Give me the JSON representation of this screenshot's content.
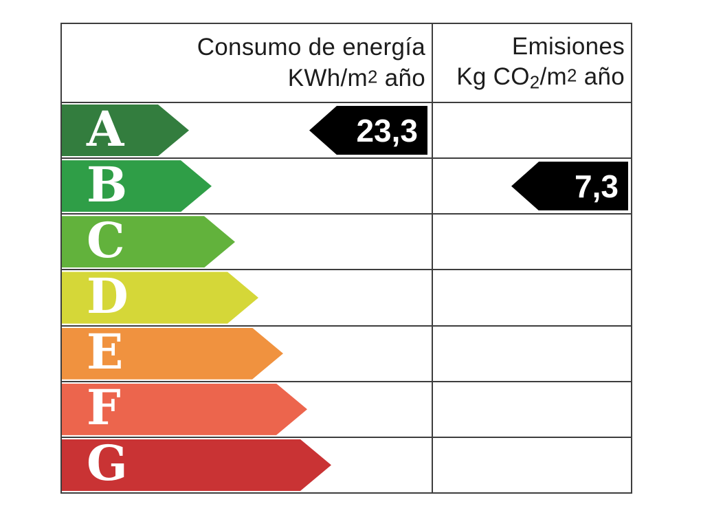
{
  "header": {
    "consumption": {
      "title": "Consumo de energía",
      "unit_pre": "KWh/m",
      "unit_sup": "2",
      "unit_post": " año"
    },
    "emissions": {
      "title": "Emisiones",
      "unit_pre": "Kg CO",
      "unit_sub": "2",
      "unit_mid": "/m",
      "unit_sup": "2",
      "unit_post": " año"
    }
  },
  "ratings": [
    {
      "letter": "A",
      "color": "#337d3e",
      "arrow_width": 185
    },
    {
      "letter": "B",
      "color": "#2f9e47",
      "arrow_width": 218
    },
    {
      "letter": "C",
      "color": "#62b23c",
      "arrow_width": 252
    },
    {
      "letter": "D",
      "color": "#d5d738",
      "arrow_width": 286
    },
    {
      "letter": "E",
      "color": "#f0923f",
      "arrow_width": 322
    },
    {
      "letter": "F",
      "color": "#ec654d",
      "arrow_width": 357
    },
    {
      "letter": "G",
      "color": "#c93334",
      "arrow_width": 392
    }
  ],
  "indicators": [
    {
      "column": "consumo",
      "rating": "A",
      "value": "23,3",
      "color": "#000000",
      "text_color": "#ffffff"
    },
    {
      "column": "emisiones",
      "rating": "B",
      "value": "7,3",
      "color": "#000000",
      "text_color": "#ffffff"
    }
  ],
  "chart_data": {
    "type": "table",
    "columns": [
      "Consumo de energía KWh/m2 año",
      "Emisiones Kg CO2/m2 año"
    ],
    "categories": [
      "A",
      "B",
      "C",
      "D",
      "E",
      "F",
      "G"
    ],
    "series": [
      {
        "name": "Consumo de energía KWh/m2 año",
        "rating": "A",
        "value": 23.3
      },
      {
        "name": "Emisiones Kg CO2/m2 año",
        "rating": "B",
        "value": 7.3
      }
    ],
    "rating_colors": [
      "#337d3e",
      "#2f9e47",
      "#62b23c",
      "#d5d738",
      "#f0923f",
      "#ec654d",
      "#c93334"
    ],
    "indicator_color": "#000000",
    "line_color": "#3d3d3d",
    "legend_position": "none",
    "grid": true
  }
}
